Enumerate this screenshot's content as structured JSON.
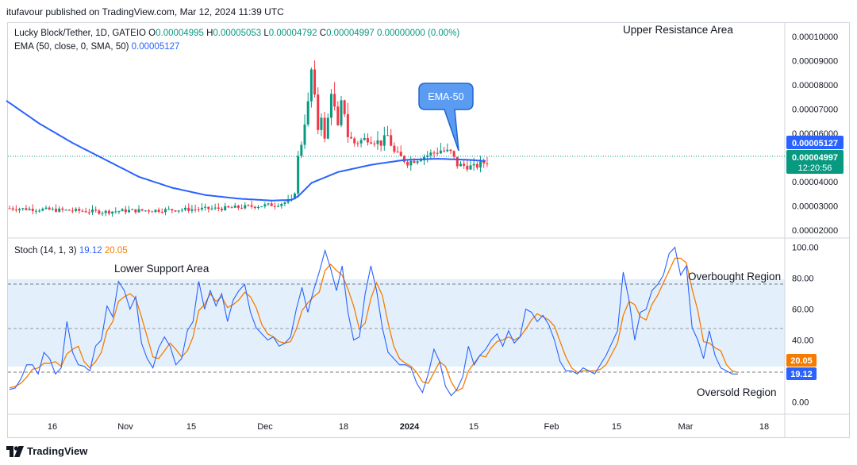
{
  "publisher": "itufavour published on TradingView.com, Mar 12, 2024 11:39 UTC",
  "price_legend": {
    "symbol": "Lucky Block/Tether, 1D, GATEIO",
    "open_label": "O",
    "open": "0.00004995",
    "high_label": "H",
    "high": "0.00005053",
    "low_label": "L",
    "low": "0.00004792",
    "close_label": "C",
    "close": "0.00004997",
    "change": "0.00000000 (0.00%)"
  },
  "ema_legend": {
    "label": "EMA (50, close, 0, SMA, 50)",
    "value": "0.00005127"
  },
  "stoch_legend": {
    "label": "Stoch (14, 1, 3)",
    "k": "19.12",
    "d": "20.05"
  },
  "annotations": {
    "upper_resistance": "Upper Resistance Area",
    "ema_callout": "EMA-50",
    "lower_support": "Lower Support Area",
    "overbought": "Overbought Region",
    "oversold": "Oversold Region"
  },
  "price_badges": {
    "ema": "0.00005127",
    "last": "0.00004997",
    "countdown": "12:20:56"
  },
  "stoch_badges": {
    "d": "20.05",
    "k": "19.12"
  },
  "brand": "TradingView",
  "colors": {
    "up": "#089981",
    "down": "#f23645",
    "ema": "#2962ff",
    "stoch_k": "#2962ff",
    "stoch_d": "#f57c00",
    "band": "#e3f0fb"
  },
  "chart_data": [
    {
      "type": "candlestick",
      "title": "Lucky Block/Tether, 1D, GATEIO",
      "x_ticks": [
        "16",
        "Nov",
        "15",
        "Dec",
        "18",
        "2024",
        "15",
        "Feb",
        "15",
        "Mar",
        "18"
      ],
      "y_ticks": [
        "0.00010000",
        "0.00009000",
        "0.00008000",
        "0.00007000",
        "0.00006000",
        "0.00005000",
        "0.00004000",
        "0.00003000",
        "0.00002000"
      ],
      "y_range": [
        1.67e-05,
        0.0001053
      ],
      "bars": 145,
      "close_path": [
        [
          0,
          2.9e-05
        ],
        [
          10,
          2.85e-05
        ],
        [
          20,
          2.8e-05
        ],
        [
          28,
          2.75e-05
        ],
        [
          35,
          2.8e-05
        ],
        [
          45,
          2.82e-05
        ],
        [
          55,
          2.86e-05
        ],
        [
          65,
          2.9e-05
        ],
        [
          75,
          3e-05
        ],
        [
          80,
          3.05e-05
        ],
        [
          85,
          3.2e-05
        ],
        [
          86,
          3.6e-05
        ],
        [
          87,
          5e-05
        ],
        [
          88,
          5.6e-05
        ],
        [
          89,
          6.5e-05
        ],
        [
          90,
          7.2e-05
        ],
        [
          91,
          8.6e-05
        ],
        [
          92,
          7.4e-05
        ],
        [
          93,
          6.2e-05
        ],
        [
          94,
          6.8e-05
        ],
        [
          95,
          5.7e-05
        ],
        [
          96,
          6.6e-05
        ],
        [
          97,
          7.8e-05
        ],
        [
          98,
          7e-05
        ],
        [
          99,
          6.2e-05
        ],
        [
          100,
          7.2e-05
        ],
        [
          101,
          6.9e-05
        ],
        [
          102,
          5.9e-05
        ],
        [
          104,
          5.6e-05
        ],
        [
          108,
          5.8e-05
        ],
        [
          112,
          5.6e-05
        ],
        [
          114,
          5.9e-05
        ],
        [
          116,
          5.2e-05
        ],
        [
          120,
          4.8e-05
        ],
        [
          124,
          5e-05
        ],
        [
          130,
          5.3e-05
        ],
        [
          133,
          5.2e-05
        ],
        [
          135,
          4.7e-05
        ],
        [
          140,
          4.6e-05
        ],
        [
          145,
          4.9e-05
        ],
        [
          148,
          4.8e-05
        ],
        [
          152,
          4.3e-05
        ],
        [
          158,
          4e-05
        ],
        [
          165,
          4e-05
        ],
        [
          170,
          3.9e-05
        ],
        [
          176,
          4.1e-05
        ],
        [
          182,
          4.3e-05
        ],
        [
          186,
          4.8e-05
        ],
        [
          190,
          5e-05
        ],
        [
          194,
          5.3e-05
        ],
        [
          198,
          5.8e-05
        ],
        [
          202,
          6.5e-05
        ],
        [
          205,
          7e-05
        ],
        [
          207,
          7.4e-05
        ],
        [
          209,
          5.8e-05
        ],
        [
          212,
          5.5e-05
        ],
        [
          215,
          5.2e-05
        ],
        [
          218,
          5.6e-05
        ],
        [
          220,
          5.1e-05
        ],
        [
          222,
          4.8e-05
        ],
        [
          224,
          5e-05
        ]
      ],
      "ema50_path": [
        [
          0,
          7.35e-05
        ],
        [
          10,
          6.4e-05
        ],
        [
          20,
          5.6e-05
        ],
        [
          30,
          4.9e-05
        ],
        [
          40,
          4.2e-05
        ],
        [
          50,
          3.75e-05
        ],
        [
          60,
          3.45e-05
        ],
        [
          70,
          3.3e-05
        ],
        [
          80,
          3.22e-05
        ],
        [
          86,
          3.25e-05
        ],
        [
          88,
          3.4e-05
        ],
        [
          92,
          3.95e-05
        ],
        [
          100,
          4.4e-05
        ],
        [
          110,
          4.7e-05
        ],
        [
          120,
          4.9e-05
        ],
        [
          130,
          4.95e-05
        ],
        [
          140,
          4.9e-05
        ],
        [
          150,
          4.8e-05
        ],
        [
          160,
          4.6e-05
        ],
        [
          170,
          4.4e-05
        ],
        [
          180,
          4.3e-05
        ],
        [
          190,
          4.4e-05
        ],
        [
          200,
          4.6e-05
        ],
        [
          205,
          4.9e-05
        ],
        [
          210,
          5.1e-05
        ],
        [
          220,
          5.15e-05
        ],
        [
          224,
          5.13e-05
        ]
      ]
    },
    {
      "type": "line",
      "title": "Stoch (14, 1, 3)",
      "y_ticks": [
        "100.00",
        "80.00",
        "60.00",
        "40.00",
        "20.00",
        "0.00"
      ],
      "y_range": [
        -7,
        105
      ],
      "bands": {
        "upper": 80,
        "middle": 50,
        "lower": 20
      },
      "series": [
        {
          "name": "%K",
          "values": [
            8,
            9,
            15,
            24,
            24,
            18,
            32,
            28,
            18,
            22,
            52,
            32,
            24,
            23,
            20,
            36,
            40,
            62,
            55,
            78,
            72,
            60,
            68,
            38,
            28,
            22,
            35,
            42,
            36,
            24,
            28,
            46,
            52,
            78,
            60,
            72,
            62,
            70,
            52,
            66,
            72,
            76,
            58,
            48,
            44,
            40,
            42,
            36,
            38,
            42,
            60,
            74,
            58,
            72,
            84,
            98,
            86,
            72,
            88,
            58,
            40,
            42,
            70,
            88,
            72,
            48,
            32,
            28,
            24,
            24,
            22,
            12,
            6,
            18,
            34,
            26,
            10,
            4,
            8,
            16,
            36,
            24,
            30,
            34,
            40,
            44,
            36,
            46,
            38,
            42,
            60,
            58,
            52,
            56,
            50,
            40,
            26,
            20,
            20,
            18,
            22,
            20,
            18,
            24,
            30,
            38,
            46,
            84,
            66,
            40,
            58,
            60,
            72,
            76,
            82,
            96,
            100,
            82,
            88,
            48,
            40,
            28,
            46,
            30,
            22,
            20,
            18,
            18
          ]
        },
        {
          "name": "%D",
          "values": [
            9,
            10,
            12,
            16,
            21,
            22,
            25,
            25,
            26,
            23,
            31,
            34,
            36,
            26,
            22,
            26,
            32,
            46,
            52,
            65,
            68,
            70,
            67,
            55,
            42,
            29,
            28,
            33,
            38,
            34,
            29,
            33,
            42,
            59,
            63,
            70,
            65,
            68,
            61,
            63,
            66,
            71,
            68,
            61,
            50,
            44,
            42,
            39,
            38,
            39,
            47,
            59,
            64,
            68,
            71,
            85,
            89,
            85,
            82,
            73,
            62,
            47,
            51,
            67,
            77,
            69,
            51,
            36,
            28,
            25,
            23,
            19,
            13,
            12,
            19,
            26,
            23,
            13,
            7,
            9,
            20,
            25,
            30,
            29,
            35,
            39,
            40,
            42,
            40,
            42,
            47,
            53,
            57,
            55,
            53,
            49,
            39,
            29,
            22,
            19,
            20,
            20,
            20,
            21,
            24,
            31,
            38,
            56,
            65,
            63,
            55,
            53,
            63,
            69,
            77,
            85,
            93,
            93,
            90,
            73,
            59,
            39,
            38,
            35,
            33,
            24,
            20,
            19
          ]
        }
      ]
    }
  ]
}
